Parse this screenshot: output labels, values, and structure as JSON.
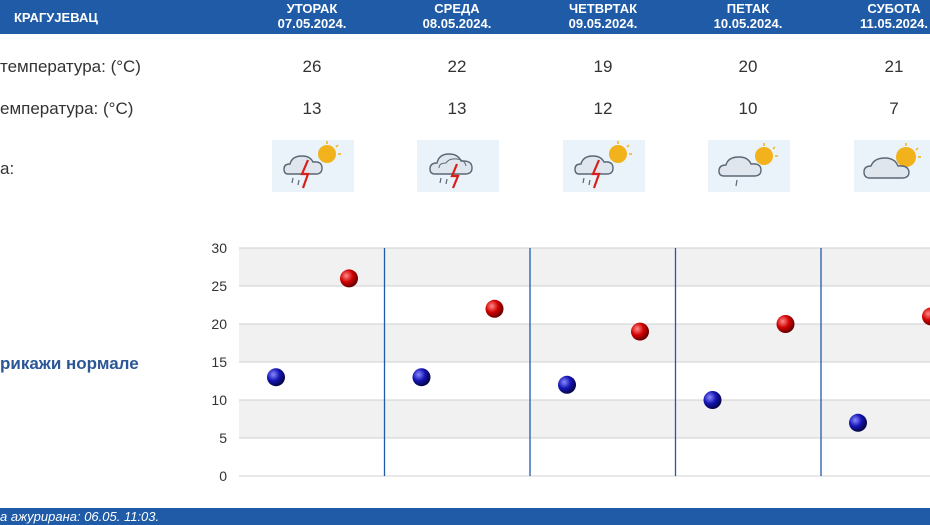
{
  "header": {
    "city": "КРАГУЈЕВАЦ",
    "days": [
      {
        "name": "УТОРАК",
        "date": "07.05.2024."
      },
      {
        "name": "СРЕДА",
        "date": "08.05.2024."
      },
      {
        "name": "ЧЕТВРТАК",
        "date": "09.05.2024."
      },
      {
        "name": "ПЕТАК",
        "date": "10.05.2024."
      },
      {
        "name": "СУБОТА",
        "date": "11.05.2024."
      }
    ]
  },
  "rows": {
    "max_label": "температура: (°C)",
    "min_label": "емпература: (°C)",
    "weather_label": "а:"
  },
  "forecast": {
    "max": [
      "26",
      "22",
      "19",
      "20",
      "21"
    ],
    "min": [
      "13",
      "13",
      "12",
      "10",
      "7"
    ],
    "icons": [
      "storm-sun-icon",
      "storm-icon",
      "storm-sun-icon",
      "cloud-sun-rain-icon",
      "cloud-sun-icon"
    ]
  },
  "normals_label": "рикажи нормале",
  "footer": {
    "updated": "а ажурирана:  06.05.  11:03."
  },
  "colors": {
    "header_bg": "#1f5ba6",
    "max_dot": "#cc0000",
    "min_dot": "#1010a0",
    "separator": "#1f5ba6"
  },
  "chart_data": {
    "type": "scatter",
    "categories": [
      "07.05.2024.",
      "08.05.2024.",
      "09.05.2024.",
      "10.05.2024.",
      "11.05.2024."
    ],
    "series": [
      {
        "values": [
          13,
          13,
          12,
          10,
          7
        ]
      },
      {
        "values": [
          26,
          22,
          19,
          20,
          21
        ]
      }
    ],
    "ylim": [
      0,
      30
    ],
    "yticks": [
      "0",
      "5",
      "10",
      "15",
      "20",
      "25",
      "30"
    ],
    "grid": true
  }
}
